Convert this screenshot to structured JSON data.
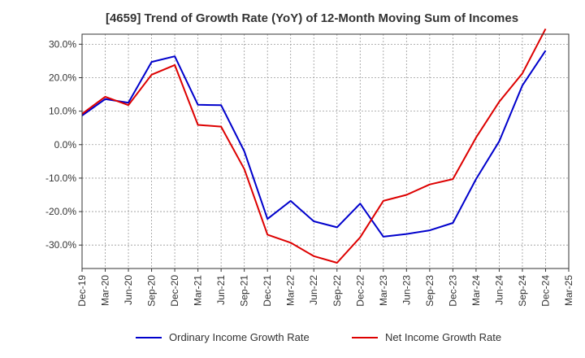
{
  "chart_data": {
    "type": "line",
    "title": "[4659]  Trend of Growth Rate (YoY) of 12-Month Moving Sum of Incomes",
    "categories": [
      "Dec-19",
      "Mar-20",
      "Jun-20",
      "Sep-20",
      "Dec-20",
      "Mar-21",
      "Jun-21",
      "Sep-21",
      "Dec-21",
      "Mar-22",
      "Jun-22",
      "Sep-22",
      "Dec-22",
      "Mar-23",
      "Jun-23",
      "Sep-23",
      "Dec-23",
      "Mar-24",
      "Jun-24",
      "Sep-24",
      "Dec-24",
      "Mar-25"
    ],
    "y_ticks": [
      "30.0%",
      "20.0%",
      "10.0%",
      "0.0%",
      "-10.0%",
      "-20.0%",
      "-30.0%"
    ],
    "ylim": [
      -37,
      33
    ],
    "grid": true,
    "legend_position": "bottom",
    "series": [
      {
        "name": "Ordinary Income Growth Rate",
        "color": "#0000cc",
        "values": [
          8.7,
          13.6,
          12.5,
          24.7,
          26.4,
          11.9,
          11.8,
          -2.0,
          -22.2,
          -16.8,
          -22.9,
          -24.7,
          -17.6,
          -27.5,
          -26.7,
          -25.6,
          -23.4,
          -10.3,
          1.0,
          17.7,
          28.1,
          null
        ]
      },
      {
        "name": "Net Income Growth Rate",
        "color": "#dd0000",
        "values": [
          9.2,
          14.3,
          11.8,
          20.9,
          23.8,
          5.9,
          5.4,
          -7.3,
          -26.9,
          -29.3,
          -33.3,
          -35.3,
          -27.7,
          -16.8,
          -15.0,
          -11.9,
          -10.3,
          2.1,
          12.8,
          21.3,
          34.6,
          null
        ]
      }
    ]
  }
}
